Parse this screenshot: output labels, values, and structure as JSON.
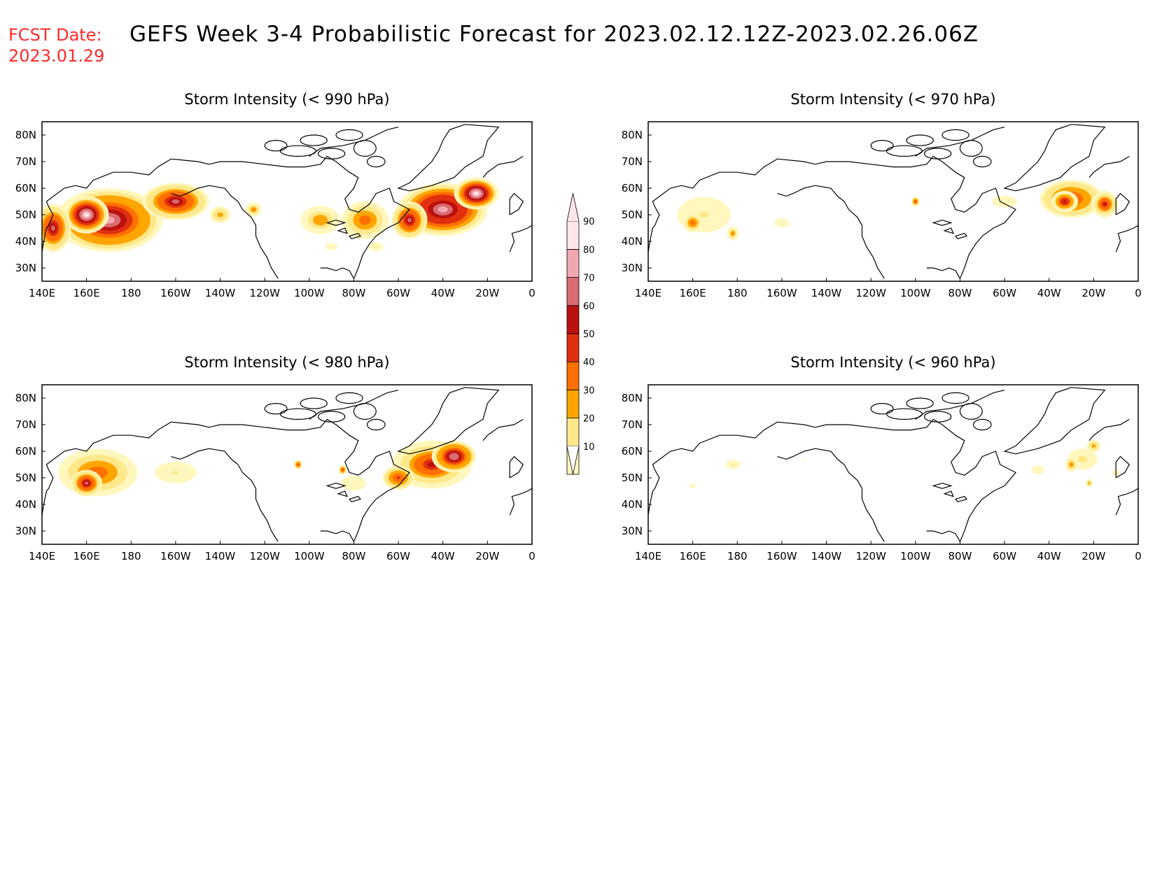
{
  "header": {
    "fcst_label": "FCST Date:",
    "fcst_date": "2023.01.29",
    "title": "GEFS Week 3-4 Probabilistic Forecast for 2023.02.12.12Z-2023.02.26.06Z"
  },
  "axes": {
    "x_ticks": [
      "140E",
      "160E",
      "180",
      "160W",
      "140W",
      "120W",
      "100W",
      "80W",
      "60W",
      "40W",
      "20W",
      "0"
    ],
    "y_ticks": [
      "30N",
      "40N",
      "50N",
      "60N",
      "70N",
      "80N"
    ]
  },
  "colorbar": {
    "levels": [
      "10",
      "20",
      "30",
      "40",
      "50",
      "60",
      "70",
      "80",
      "90"
    ],
    "colors": [
      "#fff7bd",
      "#ffe88a",
      "#ffa500",
      "#ff7000",
      "#e03010",
      "#bb1010",
      "#d86c70",
      "#f2a8b0",
      "#ffe6ea"
    ]
  },
  "panels": [
    {
      "id": "p990",
      "title": "Storm Intensity (< 990 hPa)"
    },
    {
      "id": "p970",
      "title": "Storm Intensity (< 970 hPa)"
    },
    {
      "id": "p980",
      "title": "Storm Intensity (< 980 hPa)"
    },
    {
      "id": "p960",
      "title": "Storm Intensity (< 960 hPa)"
    }
  ],
  "chart_data": {
    "type": "heatmap",
    "x_range": [
      140,
      360
    ],
    "y_range": [
      25,
      85
    ],
    "unit": "percent",
    "fields": {
      "p990": [
        {
          "lon": 170,
          "lat": 48,
          "rx": 24,
          "ry": 12,
          "v": 82
        },
        {
          "lon": 160,
          "lat": 50,
          "rx": 10,
          "ry": 7,
          "v": 92
        },
        {
          "lon": 145,
          "lat": 45,
          "rx": 8,
          "ry": 9,
          "v": 72
        },
        {
          "lon": 200,
          "lat": 55,
          "rx": 15,
          "ry": 7,
          "v": 72
        },
        {
          "lon": 220,
          "lat": 50,
          "rx": 6,
          "ry": 4,
          "v": 35
        },
        {
          "lon": 235,
          "lat": 52,
          "rx": 4,
          "ry": 3,
          "v": 40
        },
        {
          "lon": 265,
          "lat": 48,
          "rx": 10,
          "ry": 6,
          "v": 38
        },
        {
          "lon": 285,
          "lat": 48,
          "rx": 12,
          "ry": 8,
          "v": 45
        },
        {
          "lon": 320,
          "lat": 52,
          "rx": 20,
          "ry": 10,
          "v": 85
        },
        {
          "lon": 305,
          "lat": 48,
          "rx": 8,
          "ry": 7,
          "v": 72
        },
        {
          "lon": 335,
          "lat": 58,
          "rx": 10,
          "ry": 6,
          "v": 90
        },
        {
          "lon": 270,
          "lat": 38,
          "rx": 6,
          "ry": 3,
          "v": 15
        },
        {
          "lon": 290,
          "lat": 38,
          "rx": 6,
          "ry": 3,
          "v": 20
        }
      ],
      "p970": [
        {
          "lon": 165,
          "lat": 50,
          "rx": 18,
          "ry": 10,
          "v": 22
        },
        {
          "lon": 160,
          "lat": 47,
          "rx": 5,
          "ry": 4,
          "v": 45
        },
        {
          "lon": 178,
          "lat": 43,
          "rx": 3,
          "ry": 3,
          "v": 40
        },
        {
          "lon": 200,
          "lat": 47,
          "rx": 6,
          "ry": 3,
          "v": 18
        },
        {
          "lon": 260,
          "lat": 55,
          "rx": 2,
          "ry": 2,
          "v": 55
        },
        {
          "lon": 300,
          "lat": 55,
          "rx": 10,
          "ry": 4,
          "v": 18
        },
        {
          "lon": 330,
          "lat": 56,
          "rx": 16,
          "ry": 8,
          "v": 55
        },
        {
          "lon": 327,
          "lat": 55,
          "rx": 6,
          "ry": 4,
          "v": 65
        },
        {
          "lon": 345,
          "lat": 54,
          "rx": 6,
          "ry": 5,
          "v": 60
        }
      ],
      "p980": [
        {
          "lon": 165,
          "lat": 52,
          "rx": 20,
          "ry": 10,
          "v": 45
        },
        {
          "lon": 160,
          "lat": 48,
          "rx": 7,
          "ry": 5,
          "v": 72
        },
        {
          "lon": 200,
          "lat": 52,
          "rx": 14,
          "ry": 6,
          "v": 22
        },
        {
          "lon": 255,
          "lat": 55,
          "rx": 2,
          "ry": 2,
          "v": 55
        },
        {
          "lon": 275,
          "lat": 53,
          "rx": 2,
          "ry": 2,
          "v": 55
        },
        {
          "lon": 280,
          "lat": 48,
          "rx": 10,
          "ry": 5,
          "v": 18
        },
        {
          "lon": 315,
          "lat": 55,
          "rx": 18,
          "ry": 9,
          "v": 60
        },
        {
          "lon": 325,
          "lat": 58,
          "rx": 10,
          "ry": 6,
          "v": 78
        },
        {
          "lon": 300,
          "lat": 50,
          "rx": 8,
          "ry": 5,
          "v": 55
        }
      ],
      "p960": [
        {
          "lon": 178,
          "lat": 55,
          "rx": 6,
          "ry": 3,
          "v": 20
        },
        {
          "lon": 160,
          "lat": 47,
          "rx": 3,
          "ry": 2,
          "v": 15
        },
        {
          "lon": 210,
          "lat": 57,
          "rx": 3,
          "ry": 1,
          "v": 12
        },
        {
          "lon": 315,
          "lat": 53,
          "rx": 5,
          "ry": 3,
          "v": 18
        },
        {
          "lon": 335,
          "lat": 57,
          "rx": 10,
          "ry": 6,
          "v": 25
        },
        {
          "lon": 330,
          "lat": 55,
          "rx": 3,
          "ry": 3,
          "v": 42
        },
        {
          "lon": 340,
          "lat": 62,
          "rx": 4,
          "ry": 3,
          "v": 35
        },
        {
          "lon": 338,
          "lat": 48,
          "rx": 2,
          "ry": 2,
          "v": 35
        },
        {
          "lon": 350,
          "lat": 52,
          "rx": 3,
          "ry": 2,
          "v": 20
        }
      ]
    }
  }
}
